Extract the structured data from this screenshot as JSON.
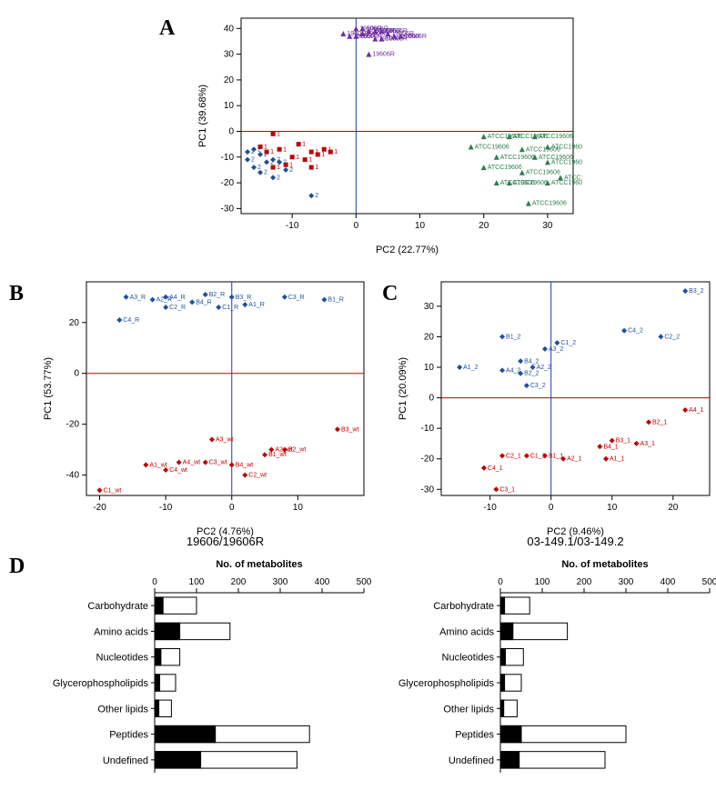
{
  "panelA": {
    "label": "A",
    "type": "scatter",
    "x_title": "PC2 (22.77%)",
    "y_title": "PC1 (39.68%)",
    "xlim": [
      -18,
      34
    ],
    "ylim": [
      -32,
      44
    ],
    "x_ticks": [
      -10,
      0,
      10,
      20,
      30
    ],
    "y_ticks": [
      -30,
      -20,
      -10,
      0,
      10,
      20,
      30,
      40
    ],
    "ref_x": 0,
    "ref_y": 0,
    "groups": [
      {
        "color": "#7030a0",
        "label": "19606R",
        "marker": "triangle",
        "points": [
          {
            "x": 0,
            "y": 40
          },
          {
            "x": 1,
            "y": 40
          },
          {
            "x": 2,
            "y": 39
          },
          {
            "x": 3,
            "y": 39
          },
          {
            "x": 4,
            "y": 39
          },
          {
            "x": 1,
            "y": 38
          },
          {
            "x": -2,
            "y": 38
          },
          {
            "x": 5,
            "y": 38
          },
          {
            "x": 6,
            "y": 37
          },
          {
            "x": 4,
            "y": 36
          },
          {
            "x": 3,
            "y": 36
          },
          {
            "x": 0,
            "y": 37
          },
          {
            "x": -1,
            "y": 37
          },
          {
            "x": 7,
            "y": 37
          },
          {
            "x": 2,
            "y": 30
          }
        ]
      },
      {
        "color": "#2e7d4f",
        "label": "ATCC19606",
        "marker": "triangle",
        "points": [
          {
            "x": 20,
            "y": -2
          },
          {
            "x": 24,
            "y": -2
          },
          {
            "x": 28,
            "y": -2
          },
          {
            "x": 30,
            "y": -6
          },
          {
            "x": 18,
            "y": -6
          },
          {
            "x": 26,
            "y": -7
          },
          {
            "x": 22,
            "y": -10
          },
          {
            "x": 28,
            "y": -10
          },
          {
            "x": 30,
            "y": -12
          },
          {
            "x": 20,
            "y": -14
          },
          {
            "x": 26,
            "y": -16
          },
          {
            "x": 32,
            "y": -18
          },
          {
            "x": 24,
            "y": -20
          },
          {
            "x": 30,
            "y": -20
          },
          {
            "x": 22,
            "y": -20
          },
          {
            "x": 27,
            "y": -28
          }
        ]
      },
      {
        "color": "#c00000",
        "label": "1",
        "marker": "square",
        "points": [
          {
            "x": -13,
            "y": -1
          },
          {
            "x": -9,
            "y": -5
          },
          {
            "x": -12,
            "y": -7
          },
          {
            "x": -7,
            "y": -8
          },
          {
            "x": -14,
            "y": -8
          },
          {
            "x": -10,
            "y": -10
          },
          {
            "x": -8,
            "y": -11
          },
          {
            "x": -11,
            "y": -13
          },
          {
            "x": -7,
            "y": -14
          },
          {
            "x": -13,
            "y": -14
          },
          {
            "x": -5,
            "y": -7
          },
          {
            "x": -6,
            "y": -9
          },
          {
            "x": -15,
            "y": -6
          },
          {
            "x": -4,
            "y": -8
          }
        ]
      },
      {
        "color": "#1f4e9c",
        "label": "2",
        "marker": "diamond",
        "points": [
          {
            "x": -16,
            "y": -7
          },
          {
            "x": -15,
            "y": -9
          },
          {
            "x": -17,
            "y": -11
          },
          {
            "x": -14,
            "y": -12
          },
          {
            "x": -16,
            "y": -14
          },
          {
            "x": -12,
            "y": -12
          },
          {
            "x": -15,
            "y": -16
          },
          {
            "x": -11,
            "y": -15
          },
          {
            "x": -13,
            "y": -18
          },
          {
            "x": -7,
            "y": -25
          },
          {
            "x": -17,
            "y": -8
          },
          {
            "x": -13,
            "y": -11
          }
        ]
      }
    ]
  },
  "panelB": {
    "label": "B",
    "type": "scatter",
    "subtitle": "19606/19606R",
    "x_title": "PC2 (4.76%)",
    "y_title": "PC1 (53.77%)",
    "xlim": [
      -22,
      20
    ],
    "ylim": [
      -48,
      36
    ],
    "x_ticks": [
      -20,
      -10,
      0,
      10
    ],
    "y_ticks": [
      -40,
      -20,
      0,
      20
    ],
    "ref_x": 0,
    "ref_y": 0,
    "points": [
      {
        "x": -16,
        "y": 30,
        "c": "#1f4e9c",
        "l": "A3_R"
      },
      {
        "x": -12,
        "y": 29,
        "c": "#1f4e9c",
        "l": "A2_R"
      },
      {
        "x": -10,
        "y": 30,
        "c": "#1f4e9c",
        "l": "A4_R"
      },
      {
        "x": -6,
        "y": 28,
        "c": "#1f4e9c",
        "l": "B4_R"
      },
      {
        "x": -4,
        "y": 31,
        "c": "#1f4e9c",
        "l": "B2_R"
      },
      {
        "x": 0,
        "y": 30,
        "c": "#1f4e9c",
        "l": "B3_R"
      },
      {
        "x": -2,
        "y": 26,
        "c": "#1f4e9c",
        "l": "C1_R"
      },
      {
        "x": 2,
        "y": 27,
        "c": "#1f4e9c",
        "l": "A1_R"
      },
      {
        "x": 8,
        "y": 30,
        "c": "#1f4e9c",
        "l": "C3_R"
      },
      {
        "x": 14,
        "y": 29,
        "c": "#1f4e9c",
        "l": "B1_R"
      },
      {
        "x": -10,
        "y": 26,
        "c": "#1f4e9c",
        "l": "C2_R"
      },
      {
        "x": -17,
        "y": 21,
        "c": "#1f4e9c",
        "l": "C4_R"
      },
      {
        "x": -3,
        "y": -26,
        "c": "#c00000",
        "l": "A3_wt"
      },
      {
        "x": -4,
        "y": -35,
        "c": "#c00000",
        "l": "C3_wt"
      },
      {
        "x": -8,
        "y": -35,
        "c": "#c00000",
        "l": "A4_wt"
      },
      {
        "x": -10,
        "y": -38,
        "c": "#c00000",
        "l": "C4_wt"
      },
      {
        "x": -13,
        "y": -36,
        "c": "#c00000",
        "l": "A1_wt"
      },
      {
        "x": -20,
        "y": -46,
        "c": "#c00000",
        "l": "C1_wt"
      },
      {
        "x": 0,
        "y": -36,
        "c": "#c00000",
        "l": "B4_wt"
      },
      {
        "x": 2,
        "y": -40,
        "c": "#c00000",
        "l": "C2_wt"
      },
      {
        "x": 5,
        "y": -32,
        "c": "#c00000",
        "l": "B1_wt"
      },
      {
        "x": 6,
        "y": -30,
        "c": "#c00000",
        "l": "A2_wt"
      },
      {
        "x": 16,
        "y": -22,
        "c": "#c00000",
        "l": "B3_wt"
      },
      {
        "x": 8,
        "y": -30,
        "c": "#c00000",
        "l": "B2_wt"
      }
    ]
  },
  "panelC": {
    "label": "C",
    "type": "scatter",
    "subtitle": "03-149.1/03-149.2",
    "x_title": "PC2 (9.46%)",
    "y_title": "PC1 (20.09%)",
    "xlim": [
      -18,
      26
    ],
    "ylim": [
      -32,
      38
    ],
    "x_ticks": [
      -10,
      0,
      10,
      20
    ],
    "y_ticks": [
      -30,
      -20,
      -10,
      0,
      10,
      20,
      30
    ],
    "ref_x": 0,
    "ref_y": 0,
    "points": [
      {
        "x": 22,
        "y": 35,
        "c": "#1f4e9c",
        "l": "B3_2"
      },
      {
        "x": 12,
        "y": 22,
        "c": "#1f4e9c",
        "l": "C4_2"
      },
      {
        "x": 18,
        "y": 20,
        "c": "#1f4e9c",
        "l": "C2_2"
      },
      {
        "x": -8,
        "y": 20,
        "c": "#1f4e9c",
        "l": "B1_2"
      },
      {
        "x": 1,
        "y": 18,
        "c": "#1f4e9c",
        "l": "C1_2"
      },
      {
        "x": -1,
        "y": 16,
        "c": "#1f4e9c",
        "l": "A3_2"
      },
      {
        "x": -5,
        "y": 12,
        "c": "#1f4e9c",
        "l": "B4_2"
      },
      {
        "x": -3,
        "y": 10,
        "c": "#1f4e9c",
        "l": "A2_2"
      },
      {
        "x": -8,
        "y": 9,
        "c": "#1f4e9c",
        "l": "A4_2"
      },
      {
        "x": -5,
        "y": 8,
        "c": "#1f4e9c",
        "l": "B2_2"
      },
      {
        "x": -15,
        "y": 10,
        "c": "#1f4e9c",
        "l": "A1_2"
      },
      {
        "x": -4,
        "y": 4,
        "c": "#1f4e9c",
        "l": "C3_2"
      },
      {
        "x": 22,
        "y": -4,
        "c": "#c00000",
        "l": "A4_1"
      },
      {
        "x": 16,
        "y": -8,
        "c": "#c00000",
        "l": "B2_1"
      },
      {
        "x": 10,
        "y": -14,
        "c": "#c00000",
        "l": "B3_1"
      },
      {
        "x": 14,
        "y": -15,
        "c": "#c00000",
        "l": "A3_1"
      },
      {
        "x": 8,
        "y": -16,
        "c": "#c00000",
        "l": "B4_1"
      },
      {
        "x": 9,
        "y": -20,
        "c": "#c00000",
        "l": "A1_1"
      },
      {
        "x": 2,
        "y": -20,
        "c": "#c00000",
        "l": "A2_1"
      },
      {
        "x": -1,
        "y": -19,
        "c": "#c00000",
        "l": "B1_1"
      },
      {
        "x": -4,
        "y": -19,
        "c": "#c00000",
        "l": "C1_1"
      },
      {
        "x": -8,
        "y": -19,
        "c": "#c00000",
        "l": "C2_1"
      },
      {
        "x": -11,
        "y": -23,
        "c": "#c00000",
        "l": "C4_1"
      },
      {
        "x": -9,
        "y": -30,
        "c": "#c00000",
        "l": "C3_1"
      }
    ]
  },
  "panelD": {
    "label": "D",
    "type": "bar",
    "x_title": "No. of metabolites",
    "x_ticks": [
      0,
      100,
      200,
      300,
      400,
      500
    ],
    "xmax": 500,
    "categories": [
      "Carbohydrate",
      "Amino acids",
      "Nucleotides",
      "Glycerophospholipids",
      "Other lipids",
      "Peptides",
      "Undefined"
    ],
    "left": {
      "total": [
        100,
        180,
        60,
        50,
        40,
        370,
        340
      ],
      "sig": [
        20,
        60,
        15,
        12,
        10,
        145,
        110
      ]
    },
    "right": {
      "total": [
        70,
        160,
        55,
        50,
        40,
        300,
        250
      ],
      "sig": [
        10,
        30,
        12,
        10,
        8,
        50,
        45
      ]
    },
    "bar_fill_total": "#ffffff",
    "bar_fill_sig": "#000000",
    "bar_stroke": "#000000"
  },
  "layout": {
    "font_family": "Arial",
    "background": "#ffffff"
  }
}
